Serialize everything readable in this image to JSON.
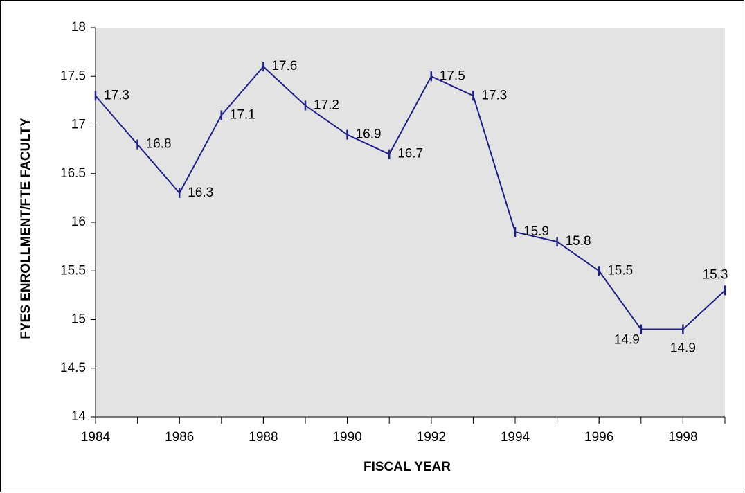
{
  "chart_data": {
    "type": "line",
    "x_label": "FISCAL YEAR",
    "y_label": "FYES ENROLLMENT/FTE FACULTY",
    "x": [
      1984,
      1985,
      1986,
      1987,
      1988,
      1989,
      1990,
      1991,
      1992,
      1993,
      1994,
      1995,
      1996,
      1997,
      1998,
      1999
    ],
    "series": [
      {
        "color": "#1f1f8a",
        "values": [
          17.3,
          16.8,
          16.3,
          17.1,
          17.6,
          17.2,
          16.9,
          16.7,
          17.5,
          17.3,
          15.9,
          15.8,
          15.5,
          14.9,
          14.9,
          15.3
        ]
      }
    ],
    "xlim": [
      1984,
      1999
    ],
    "xticks": [
      1984,
      1986,
      1988,
      1990,
      1992,
      1994,
      1996,
      1998
    ],
    "ylim": [
      14,
      18
    ],
    "yticks": [
      14,
      14.5,
      15,
      15.5,
      16,
      16.5,
      17,
      17.5,
      18
    ],
    "plot_background": "#e3e3e3"
  }
}
